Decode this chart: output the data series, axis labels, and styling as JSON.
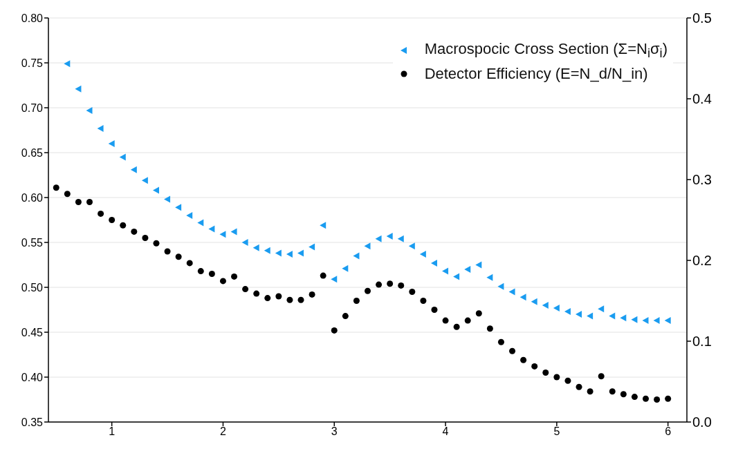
{
  "chart_data": {
    "type": "scatter",
    "xlim": [
      0.43,
      6.17
    ],
    "xticks": [
      1,
      2,
      3,
      4,
      5,
      6
    ],
    "ylim": [
      0.35,
      0.8
    ],
    "yticks": [
      {
        "value": 0.35,
        "label": "0.35"
      },
      {
        "value": 0.4,
        "label": "0.40"
      },
      {
        "value": 0.45,
        "label": "0.45"
      },
      {
        "value": 0.5,
        "label": "0.50"
      },
      {
        "value": 0.55,
        "label": "0.55"
      },
      {
        "value": 0.6,
        "label": "0.60"
      },
      {
        "value": 0.65,
        "label": "0.65"
      },
      {
        "value": 0.7,
        "label": "0.70"
      },
      {
        "value": 0.75,
        "label": "0.75"
      },
      {
        "value": 0.8,
        "label": "0.80"
      }
    ],
    "y2lim": [
      0,
      0.5
    ],
    "y2ticks": [
      {
        "value": 0,
        "label": "0.0"
      },
      0.1,
      0.2,
      0.3,
      0.4,
      0.5
    ],
    "grid": "y",
    "legend": "top right",
    "series": [
      {
        "name": "Macrospocic Cross Section (Σ=N$_{i}$σ$_{i}$)",
        "color": "#1a9cf0",
        "marker": "triangle",
        "x": [
          0.6,
          0.7,
          0.8,
          0.9,
          1.0,
          1.1,
          1.2,
          1.3,
          1.4,
          1.5,
          1.6,
          1.7,
          1.8,
          1.9,
          2.0,
          2.1,
          2.2,
          2.3,
          2.4,
          2.5,
          2.6,
          2.7,
          2.8,
          2.9,
          3.0,
          3.1,
          3.2,
          3.3,
          3.4,
          3.5,
          3.6,
          3.7,
          3.8,
          3.9,
          4.0,
          4.1,
          4.2,
          4.3,
          4.4,
          4.5,
          4.6,
          4.7,
          4.8,
          4.9,
          5.0,
          5.1,
          5.2,
          5.3,
          5.4,
          5.5,
          5.6,
          5.7,
          5.8,
          5.9,
          6.0
        ],
        "values": [
          0.749,
          0.721,
          0.697,
          0.677,
          0.66,
          0.645,
          0.631,
          0.619,
          0.608,
          0.598,
          0.589,
          0.58,
          0.572,
          0.565,
          0.559,
          0.562,
          0.55,
          0.544,
          0.541,
          0.538,
          0.537,
          0.538,
          0.545,
          0.569,
          0.509,
          0.521,
          0.535,
          0.546,
          0.554,
          0.557,
          0.554,
          0.546,
          0.537,
          0.527,
          0.518,
          0.512,
          0.52,
          0.525,
          0.511,
          0.501,
          0.495,
          0.489,
          0.484,
          0.48,
          0.477,
          0.473,
          0.47,
          0.468,
          0.476,
          0.468,
          0.466,
          0.464,
          0.463,
          0.463,
          0.463
        ]
      },
      {
        "name": "Detector Efficiency (E=N_d/N_in)",
        "color": "#000000",
        "marker": "circle",
        "x": [
          0.5,
          0.6,
          0.7,
          0.8,
          0.9,
          1.0,
          1.1,
          1.2,
          1.3,
          1.4,
          1.5,
          1.6,
          1.7,
          1.8,
          1.9,
          2.0,
          2.1,
          2.2,
          2.3,
          2.4,
          2.5,
          2.6,
          2.7,
          2.8,
          2.9,
          3.0,
          3.1,
          3.2,
          3.3,
          3.4,
          3.5,
          3.6,
          3.7,
          3.8,
          3.9,
          4.0,
          4.1,
          4.2,
          4.3,
          4.4,
          4.5,
          4.6,
          4.7,
          4.8,
          4.9,
          5.0,
          5.1,
          5.2,
          5.3,
          5.4,
          5.5,
          5.6,
          5.7,
          5.8,
          5.9,
          6.0
        ],
        "values": [
          0.611,
          0.604,
          0.595,
          0.595,
          0.582,
          0.575,
          0.569,
          0.562,
          0.555,
          0.549,
          0.54,
          0.534,
          0.527,
          0.518,
          0.515,
          0.507,
          0.512,
          0.498,
          0.493,
          0.488,
          0.49,
          0.486,
          0.486,
          0.492,
          0.513,
          0.452,
          0.468,
          0.485,
          0.496,
          0.503,
          0.504,
          0.502,
          0.495,
          0.485,
          0.475,
          0.463,
          0.456,
          0.463,
          0.471,
          0.454,
          0.439,
          0.429,
          0.419,
          0.412,
          0.405,
          0.4,
          0.396,
          0.389,
          0.384,
          0.401,
          0.384,
          0.381,
          0.378,
          0.376,
          0.375,
          0.376
        ]
      }
    ]
  }
}
